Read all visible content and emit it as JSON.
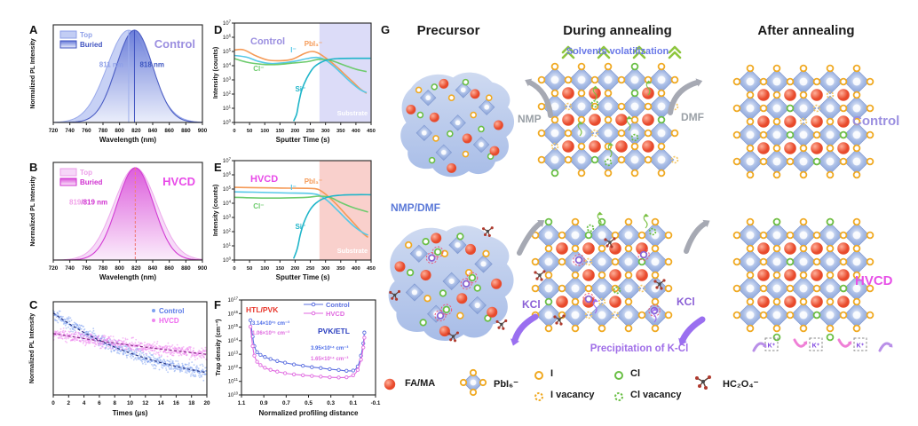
{
  "panels": {
    "a": "A",
    "b": "B",
    "c": "C",
    "d": "D",
    "e": "E",
    "f": "F",
    "g": "G"
  },
  "colors": {
    "control_purple": "#9b8fe0",
    "hvcd_magenta": "#e750e7",
    "blue_dark": "#3c55c0",
    "blue_light": "#8fa0e8",
    "pink_light": "#f0a0e8",
    "magenta_dark": "#d02fd0",
    "trace_orange": "#f59a57",
    "trace_cyan": "#56c8e8",
    "trace_green": "#6dcb6d",
    "trace_teal": "#1fb5c9",
    "substrate_control": "#dcdcf8",
    "substrate_hvcd": "#f9d0cc",
    "red_label": "#e8372c",
    "navy_label": "#2b3fbf",
    "solvent_blue": "#6a79e8",
    "nmpdmf_blue": "#5b79d8",
    "kcl_purple": "#8a5fd6",
    "precip_purple": "#a06ee8",
    "gray_arrow": "#a6a9b3",
    "chevron_green": "#8ec63f"
  },
  "chart_data": [
    {
      "id": "A",
      "type": "area",
      "title": "Control",
      "legend": [
        "Top",
        "Buried"
      ],
      "xlabel": "Wavelength (nm)",
      "ylabel": "Normalized PL Intensity",
      "xlim": [
        720,
        900
      ],
      "xticks": [
        720,
        740,
        760,
        780,
        800,
        820,
        840,
        860,
        880,
        900
      ],
      "series": [
        {
          "name": "Top",
          "peak_nm": 811,
          "sigma_nm": 26
        },
        {
          "name": "Buried",
          "peak_nm": 818,
          "sigma_nm": 22
        }
      ],
      "peak_labels": [
        "811 nm",
        "818 nm"
      ]
    },
    {
      "id": "B",
      "type": "area",
      "title": "HVCD",
      "legend": [
        "Top",
        "Buried"
      ],
      "xlabel": "Wavelength (nm)",
      "ylabel": "Normalized PL Intensity",
      "xlim": [
        720,
        900
      ],
      "xticks": [
        720,
        740,
        760,
        780,
        800,
        820,
        840,
        860,
        880,
        900
      ],
      "series": [
        {
          "name": "Top",
          "peak_nm": 819,
          "sigma_nm": 26
        },
        {
          "name": "Buried",
          "peak_nm": 819,
          "sigma_nm": 22
        }
      ],
      "peak_label_parts": [
        "819",
        "/819 nm"
      ]
    },
    {
      "id": "C",
      "type": "scatter",
      "legend": [
        "Control",
        "HVCD"
      ],
      "xlabel": "Times (μs)",
      "ylabel": "Normalized PL Intensity",
      "xlim": [
        0,
        20
      ],
      "xticks": [
        0,
        2,
        4,
        6,
        8,
        10,
        12,
        14,
        16,
        18,
        20
      ],
      "series": [
        {
          "name": "Control",
          "amplitude": 0.95,
          "tau_us": 14
        },
        {
          "name": "HVCD",
          "amplitude": 0.7,
          "tau_us": 45
        }
      ]
    },
    {
      "id": "D",
      "type": "line",
      "title": "Control",
      "xlabel": "Sputter Time (s)",
      "ylabel": "Intensity (counts)",
      "xlim": [
        0,
        450
      ],
      "xticks": [
        0,
        50,
        100,
        150,
        200,
        250,
        300,
        350,
        400,
        450
      ],
      "ylog_decades": [
        0,
        7
      ],
      "substrate_start_s": 280,
      "substrate_label": "Substrate",
      "series": [
        {
          "name": "PbI₃⁻",
          "points": [
            [
              0,
              5.1
            ],
            [
              30,
              5.12
            ],
            [
              70,
              4.7
            ],
            [
              110,
              4.4
            ],
            [
              150,
              4.35
            ],
            [
              190,
              4.45
            ],
            [
              230,
              4.85
            ],
            [
              255,
              5.0
            ],
            [
              275,
              4.9
            ],
            [
              300,
              4.55
            ],
            [
              330,
              4.05
            ],
            [
              360,
              3.45
            ],
            [
              390,
              2.85
            ],
            [
              415,
              2.35
            ],
            [
              435,
              2.05
            ]
          ]
        },
        {
          "name": "I⁻",
          "points": [
            [
              0,
              4.72
            ],
            [
              40,
              4.6
            ],
            [
              80,
              4.3
            ],
            [
              120,
              4.15
            ],
            [
              160,
              4.2
            ],
            [
              200,
              4.32
            ],
            [
              240,
              4.5
            ],
            [
              270,
              4.58
            ],
            [
              295,
              4.45
            ],
            [
              325,
              4.0
            ],
            [
              355,
              3.4
            ],
            [
              385,
              2.8
            ],
            [
              415,
              2.3
            ],
            [
              435,
              2.1
            ]
          ]
        },
        {
          "name": "Cl⁻",
          "points": [
            [
              0,
              4.5
            ],
            [
              40,
              4.25
            ],
            [
              90,
              4.1
            ],
            [
              140,
              4.08
            ],
            [
              190,
              4.18
            ],
            [
              240,
              4.28
            ],
            [
              280,
              4.45
            ],
            [
              320,
              4.35
            ],
            [
              360,
              4.05
            ],
            [
              400,
              3.75
            ],
            [
              435,
              3.58
            ]
          ]
        },
        {
          "name": "Si⁻",
          "points": [
            [
              195,
              0.1
            ],
            [
              205,
              0.6
            ],
            [
              212,
              1.4
            ],
            [
              222,
              2.3
            ],
            [
              238,
              3.1
            ],
            [
              258,
              3.8
            ],
            [
              278,
              4.15
            ],
            [
              305,
              4.4
            ],
            [
              340,
              4.5
            ],
            [
              390,
              4.52
            ],
            [
              448,
              4.52
            ]
          ]
        }
      ]
    },
    {
      "id": "E",
      "type": "line",
      "title": "HVCD",
      "xlabel": "Sputter Time (s)",
      "ylabel": "Intensity (counts)",
      "xlim": [
        0,
        450
      ],
      "xticks": [
        0,
        50,
        100,
        150,
        200,
        250,
        300,
        350,
        400,
        450
      ],
      "ylog_decades": [
        0,
        7
      ],
      "substrate_start_s": 280,
      "substrate_label": "Substrate",
      "series": [
        {
          "name": "PbI₃⁻",
          "points": [
            [
              0,
              5.12
            ],
            [
              60,
              5.1
            ],
            [
              120,
              5.08
            ],
            [
              180,
              5.06
            ],
            [
              240,
              5.05
            ],
            [
              275,
              4.98
            ],
            [
              305,
              4.55
            ],
            [
              335,
              3.95
            ],
            [
              365,
              3.25
            ],
            [
              395,
              2.55
            ],
            [
              425,
              1.85
            ],
            [
              440,
              1.6
            ]
          ]
        },
        {
          "name": "I⁻",
          "points": [
            [
              0,
              4.8
            ],
            [
              60,
              4.78
            ],
            [
              120,
              4.75
            ],
            [
              180,
              4.72
            ],
            [
              240,
              4.7
            ],
            [
              275,
              4.6
            ],
            [
              305,
              4.2
            ],
            [
              335,
              3.6
            ],
            [
              365,
              2.95
            ],
            [
              395,
              2.35
            ],
            [
              425,
              1.9
            ],
            [
              440,
              1.75
            ]
          ]
        },
        {
          "name": "Cl⁻",
          "points": [
            [
              0,
              4.42
            ],
            [
              60,
              4.38
            ],
            [
              120,
              4.36
            ],
            [
              180,
              4.38
            ],
            [
              240,
              4.42
            ],
            [
              280,
              4.5
            ],
            [
              315,
              4.42
            ],
            [
              350,
              4.05
            ],
            [
              390,
              3.7
            ],
            [
              440,
              3.38
            ]
          ]
        },
        {
          "name": "Si⁻",
          "points": [
            [
              195,
              0.1
            ],
            [
              207,
              0.8
            ],
            [
              217,
              1.8
            ],
            [
              230,
              2.7
            ],
            [
              248,
              3.5
            ],
            [
              268,
              4.0
            ],
            [
              290,
              4.3
            ],
            [
              320,
              4.5
            ],
            [
              360,
              4.58
            ],
            [
              400,
              4.6
            ],
            [
              448,
              4.6
            ]
          ]
        }
      ]
    },
    {
      "id": "F",
      "type": "line",
      "legend": [
        "Control",
        "HVCD"
      ],
      "xlabel": "Normalized profiling distance",
      "ylabel": "Trap density (cm⁻³)",
      "xticks": [
        1.1,
        0.9,
        0.7,
        0.5,
        0.3,
        0.1,
        -0.1
      ],
      "xlim": [
        1.1,
        -0.1
      ],
      "ylog_decades": [
        10,
        17
      ],
      "annotations": {
        "htl": "HTL/PVK",
        "pvketl": "PVK/ETL",
        "control_htl": "3.14×10¹⁵ cm⁻³",
        "hvcd_htl": "1.06×10¹⁵ cm⁻³",
        "control_etl": "3.95×10¹⁴ cm⁻³",
        "hvcd_etl": "1.65×10¹⁴ cm⁻³"
      },
      "series": [
        {
          "name": "Control",
          "points": [
            [
              1.02,
              15.5
            ],
            [
              1.0,
              14.3
            ],
            [
              0.985,
              13.6
            ],
            [
              0.96,
              13.15
            ],
            [
              0.93,
              12.95
            ],
            [
              0.89,
              12.8
            ],
            [
              0.84,
              12.65
            ],
            [
              0.78,
              12.5
            ],
            [
              0.71,
              12.38
            ],
            [
              0.63,
              12.25
            ],
            [
              0.55,
              12.15
            ],
            [
              0.47,
              12.05
            ],
            [
              0.39,
              11.98
            ],
            [
              0.31,
              11.9
            ],
            [
              0.23,
              11.84
            ],
            [
              0.16,
              11.78
            ],
            [
              0.1,
              11.8
            ],
            [
              0.06,
              12.1
            ],
            [
              0.03,
              12.9
            ],
            [
              0.01,
              13.8
            ],
            [
              0.0,
              14.6
            ]
          ]
        },
        {
          "name": "HVCD",
          "points": [
            [
              1.02,
              15.03
            ],
            [
              1.0,
              13.6
            ],
            [
              0.985,
              12.9
            ],
            [
              0.96,
              12.45
            ],
            [
              0.93,
              12.2
            ],
            [
              0.89,
              12.0
            ],
            [
              0.84,
              11.85
            ],
            [
              0.78,
              11.72
            ],
            [
              0.71,
              11.6
            ],
            [
              0.63,
              11.52
            ],
            [
              0.55,
              11.45
            ],
            [
              0.47,
              11.4
            ],
            [
              0.39,
              11.35
            ],
            [
              0.31,
              11.3
            ],
            [
              0.23,
              11.28
            ],
            [
              0.16,
              11.3
            ],
            [
              0.1,
              11.45
            ],
            [
              0.06,
              11.85
            ],
            [
              0.03,
              12.6
            ],
            [
              0.01,
              13.5
            ],
            [
              0.0,
              14.22
            ]
          ]
        }
      ]
    }
  ],
  "schematic": {
    "label": "G",
    "col_headers": [
      "Precursor",
      "During annealing",
      "After annealing"
    ],
    "row_labels": [
      "Control",
      "HVCD"
    ],
    "solvents_volatilization": "Solvents volatilization",
    "nmp": "NMP",
    "dmf": "DMF",
    "nmp_dmf": "NMP/DMF",
    "kcl": "KCl",
    "precipitation": "Precipitation of K-Cl",
    "k_plus": "K⁺",
    "legend": [
      {
        "icon": "fa-ma-icon",
        "label": "FA/MA"
      },
      {
        "icon": "pbi6-icon",
        "label": "PbI₆⁻"
      },
      {
        "icon": "iodine-icon",
        "label": "I"
      },
      {
        "icon": "iodine-vacancy-icon",
        "label": "I vacancy"
      },
      {
        "icon": "chlorine-icon",
        "label": "Cl"
      },
      {
        "icon": "chlorine-vacancy-icon",
        "label": "Cl vacancy"
      },
      {
        "icon": "oxalate-icon",
        "label": "HC₂O₄⁻"
      }
    ]
  }
}
